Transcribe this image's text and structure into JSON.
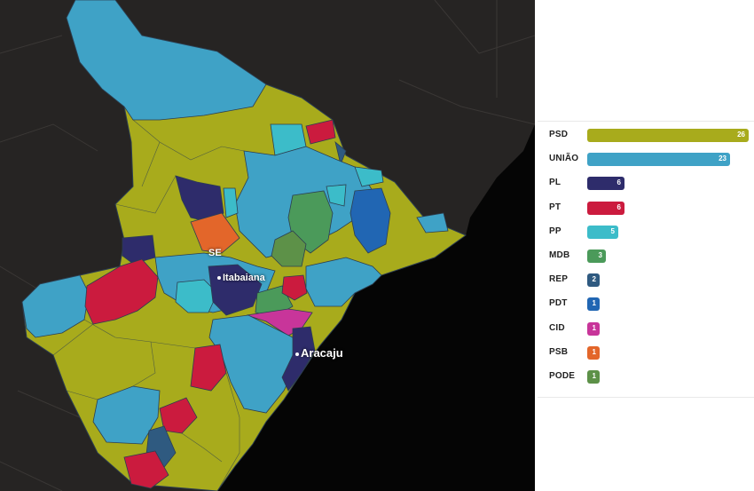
{
  "map": {
    "state_label": "SE",
    "cities": [
      {
        "name": "Itabaiana"
      },
      {
        "name": "Aracaju"
      }
    ],
    "colors": {
      "background": "#262423",
      "sea": "#050505",
      "border": "#2c3e50"
    }
  },
  "legend": {
    "max_value": 26,
    "parties": [
      {
        "label": "PSD",
        "value": "26",
        "color": "#a8ab1c"
      },
      {
        "label": "UNIÃO",
        "value": "23",
        "color": "#3fa2c6"
      },
      {
        "label": "PL",
        "value": "6",
        "color": "#2e2c6b"
      },
      {
        "label": "PT",
        "value": "6",
        "color": "#cb1b3e"
      },
      {
        "label": "PP",
        "value": "5",
        "color": "#3cbcc9"
      },
      {
        "label": "MDB",
        "value": "3",
        "color": "#4b9a5a"
      },
      {
        "label": "REP",
        "value": "2",
        "color": "#2f5a80"
      },
      {
        "label": "PDT",
        "value": "1",
        "color": "#2166b3"
      },
      {
        "label": "CID",
        "value": "1",
        "color": "#c8359a"
      },
      {
        "label": "PSB",
        "value": "1",
        "color": "#e3662a"
      },
      {
        "label": "PODE",
        "value": "1",
        "color": "#5d9148"
      }
    ]
  }
}
